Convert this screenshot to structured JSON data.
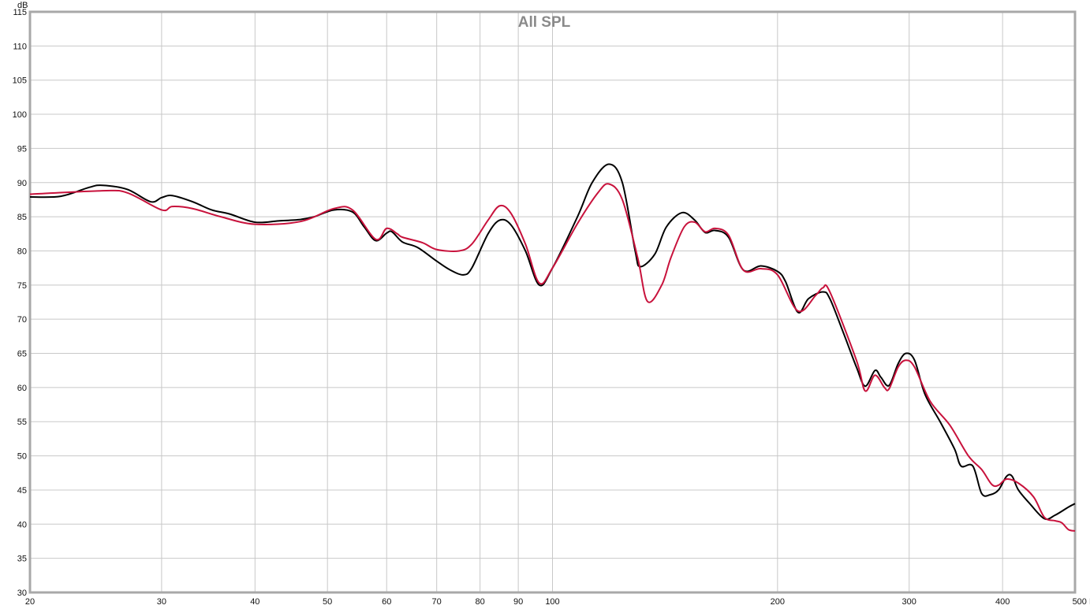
{
  "chart_data": {
    "type": "line",
    "title": "All SPL",
    "ylabel": "dB",
    "xunit": "Hz",
    "xscale": "log",
    "xlim": [
      20,
      500
    ],
    "ylim": [
      30,
      115
    ],
    "grid": true,
    "xticks": [
      20,
      30,
      40,
      50,
      60,
      70,
      80,
      90,
      100,
      200,
      300,
      400,
      500
    ],
    "xtick_labels": [
      "20",
      "30",
      "40",
      "50",
      "60",
      "70",
      "80",
      "90",
      "100",
      "200",
      "300",
      "400",
      "500 Hz"
    ],
    "yticks": [
      30,
      35,
      40,
      45,
      50,
      55,
      60,
      65,
      70,
      75,
      80,
      85,
      90,
      95,
      100,
      105,
      110,
      115
    ],
    "series": [
      {
        "color": "#000000",
        "x": [
          20,
          22,
          24,
          25,
          27,
          29,
          30,
          31,
          33,
          35,
          37,
          40,
          43,
          46,
          48,
          51,
          54,
          56,
          58,
          60,
          61,
          63,
          66,
          70,
          73,
          76,
          78,
          82,
          85,
          88,
          92,
          96,
          100,
          108,
          113,
          119,
          124,
          129,
          131,
          137,
          142,
          149,
          155,
          160,
          165,
          172,
          180,
          190,
          200,
          205,
          213,
          220,
          230,
          235,
          245,
          255,
          262,
          270,
          275,
          282,
          290,
          297,
          305,
          315,
          330,
          345,
          352,
          365,
          375,
          385,
          395,
          405,
          412,
          420,
          435,
          455,
          470,
          490,
          500
        ],
        "y": [
          87.9,
          88,
          89.3,
          89.6,
          89,
          87.2,
          87.8,
          88.1,
          87.2,
          86,
          85.4,
          84.2,
          84.4,
          84.6,
          85,
          86,
          85.7,
          83.5,
          81.5,
          82.6,
          82.8,
          81.3,
          80.5,
          78.5,
          77.2,
          76.5,
          77.5,
          82.5,
          84.5,
          83.8,
          80,
          75,
          77.5,
          85,
          90,
          92.7,
          90,
          80,
          77.7,
          79.5,
          83.5,
          85.6,
          84.5,
          82.7,
          83,
          82,
          77.2,
          77.8,
          77,
          75.5,
          71,
          73,
          74,
          73,
          68,
          63,
          60.2,
          62.5,
          61.5,
          60.3,
          63.5,
          65,
          64,
          59,
          55,
          51,
          48.5,
          48.5,
          44.5,
          44.3,
          45,
          47,
          47,
          45,
          43,
          40.8,
          41.3,
          42.5,
          43
        ]
      },
      {
        "color": "#c8123c",
        "x": [
          20,
          25,
          27,
          30,
          31,
          33,
          36,
          40,
          46,
          51,
          54,
          58,
          60,
          62,
          63,
          67,
          70,
          75,
          78,
          82,
          85,
          88,
          92,
          96,
          100,
          108,
          115,
          119,
          124,
          130,
          134,
          140,
          144,
          150,
          155,
          160,
          165,
          172,
          180,
          190,
          200,
          213,
          225,
          230,
          235,
          255,
          262,
          270,
          278,
          282,
          290,
          297,
          305,
          320,
          340,
          360,
          375,
          387,
          395,
          405,
          420,
          440,
          455,
          470,
          480,
          490,
          500
        ],
        "y": [
          88.3,
          88.8,
          88.5,
          86,
          86.5,
          86.2,
          85,
          83.9,
          84.3,
          86.2,
          86,
          81.7,
          83.3,
          82.5,
          82,
          81.2,
          80.2,
          80,
          81,
          84.5,
          86.6,
          85.5,
          81,
          75.3,
          77.5,
          84,
          88.5,
          89.8,
          87.5,
          79,
          72.6,
          75,
          79,
          83.5,
          84.2,
          82.8,
          83.3,
          82.3,
          77.2,
          77.4,
          76.5,
          71.2,
          73.5,
          74.6,
          74,
          64,
          59.5,
          61.8,
          60,
          59.8,
          63,
          64,
          63,
          58,
          54.5,
          50,
          48,
          45.8,
          45.7,
          46.6,
          46,
          44,
          41,
          40.5,
          40.2,
          39.2,
          39
        ]
      }
    ]
  }
}
